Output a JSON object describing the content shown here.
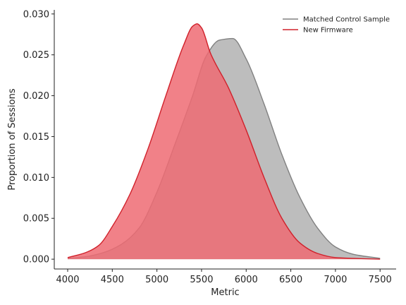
{
  "chart_data": {
    "type": "area",
    "xlabel": "Metric",
    "ylabel": "Proportion of Sessions",
    "xlim": [
      3850,
      7680
    ],
    "ylim": [
      -0.0012,
      0.0305
    ],
    "xticks": [
      4000,
      4500,
      5000,
      5500,
      6000,
      6500,
      7000,
      7500
    ],
    "xtick_labels": [
      "4000",
      "4500",
      "5000",
      "5500",
      "6000",
      "6500",
      "7000",
      "7500"
    ],
    "yticks": [
      0,
      0.005,
      0.01,
      0.015,
      0.02,
      0.025,
      0.03
    ],
    "ytick_labels": [
      "0.000",
      "0.005",
      "0.010",
      "0.015",
      "0.020",
      "0.025",
      "0.030"
    ],
    "legend_position": "top-right",
    "series": [
      {
        "name": "Matched Control Sample",
        "line_color": "#808080",
        "fill_color": "#bdbdbd",
        "x": [
          4000,
          4200,
          4400,
          4600,
          4800,
          5000,
          5200,
          5400,
          5550,
          5700,
          5850,
          6000,
          6200,
          6400,
          6600,
          6800,
          7000,
          7200,
          7500
        ],
        "y": [
          0.0001,
          0.0003,
          0.0008,
          0.0018,
          0.0038,
          0.0082,
          0.014,
          0.02,
          0.0248,
          0.0268,
          0.027,
          0.0245,
          0.019,
          0.0128,
          0.0076,
          0.0038,
          0.0015,
          0.0006,
          0.0001
        ]
      },
      {
        "name": "New Firmware",
        "line_color": "#d0202a",
        "fill_color": "#ee6b73",
        "x": [
          4000,
          4200,
          4350,
          4500,
          4700,
          4900,
          5100,
          5300,
          5400,
          5450,
          5500,
          5600,
          5800,
          6000,
          6200,
          6400,
          6600,
          6800,
          7000,
          7200,
          7500
        ],
        "y": [
          0.0002,
          0.0008,
          0.0017,
          0.004,
          0.008,
          0.0135,
          0.02,
          0.0262,
          0.0285,
          0.0288,
          0.0283,
          0.0252,
          0.021,
          0.0158,
          0.01,
          0.005,
          0.002,
          0.0007,
          0.0002,
          0.0001,
          0.0
        ]
      }
    ]
  }
}
